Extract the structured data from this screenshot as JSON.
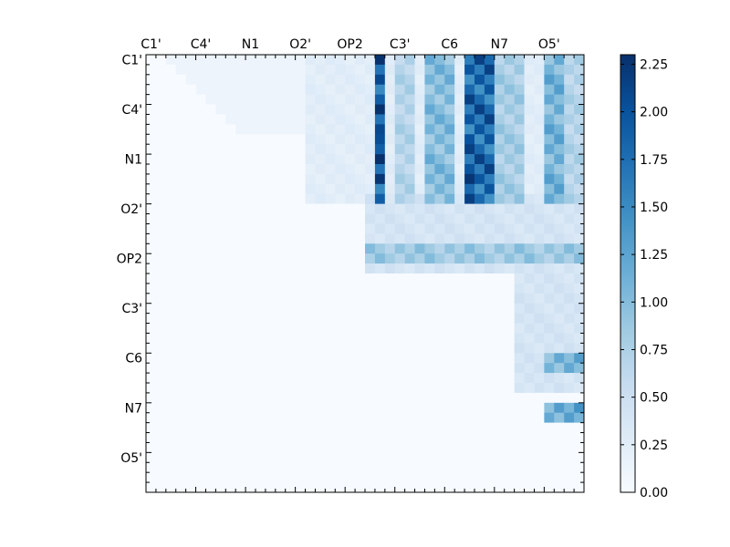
{
  "chart_data": {
    "type": "heatmap",
    "title": "",
    "xlabel": "",
    "ylabel": "",
    "colormap": "Blues",
    "colormap_stops": [
      "#f7fbff",
      "#deebf7",
      "#c6dbef",
      "#9ecae1",
      "#6baed6",
      "#4292c6",
      "#2171b5",
      "#08519c",
      "#08306b"
    ],
    "value_range": [
      0.0,
      2.3
    ],
    "grid_size": 44,
    "x_tick_labels": [
      "C1'",
      "C4'",
      "N1",
      "O2'",
      "OP2",
      "C3'",
      "C6",
      "N7",
      "O5'"
    ],
    "y_tick_labels": [
      "C1'",
      "C4'",
      "N1",
      "O2'",
      "OP2",
      "C3'",
      "C6",
      "N7",
      "O5'"
    ],
    "label_start_index": 0,
    "label_step": 5,
    "colorbar_ticks": [
      "0.00",
      "0.25",
      "0.50",
      "0.75",
      "1.00",
      "1.25",
      "1.50",
      "1.75",
      "2.00",
      "2.25"
    ],
    "colorbar_tick_values": [
      0.0,
      0.25,
      0.5,
      0.75,
      1.0,
      1.25,
      1.5,
      1.75,
      2.0,
      2.25
    ],
    "bands": [
      {
        "rows": [
          0,
          14
        ],
        "cols": [
          16,
          43
        ],
        "value": 0.25
      },
      {
        "rows": [
          0,
          14
        ],
        "cols": [
          23,
          23
        ],
        "value": 1.9
      },
      {
        "rows": [
          0,
          14
        ],
        "cols": [
          25,
          26
        ],
        "value": 0.7
      },
      {
        "rows": [
          0,
          14
        ],
        "cols": [
          28,
          30
        ],
        "value": 1.0
      },
      {
        "rows": [
          0,
          14
        ],
        "cols": [
          32,
          34
        ],
        "value": 1.8
      },
      {
        "rows": [
          0,
          14
        ],
        "cols": [
          35,
          37
        ],
        "value": 0.8
      },
      {
        "rows": [
          0,
          14
        ],
        "cols": [
          40,
          41
        ],
        "value": 1.1
      },
      {
        "rows": [
          0,
          14
        ],
        "cols": [
          42,
          43
        ],
        "value": 0.7
      },
      {
        "rows": [
          14,
          21
        ],
        "cols": [
          22,
          43
        ],
        "value": 0.4
      },
      {
        "rows": [
          19,
          20
        ],
        "cols": [
          22,
          43
        ],
        "value": 0.85
      },
      {
        "rows": [
          22,
          33
        ],
        "cols": [
          37,
          43
        ],
        "value": 0.4
      },
      {
        "rows": [
          30,
          31
        ],
        "cols": [
          40,
          43
        ],
        "value": 1.1
      },
      {
        "rows": [
          35,
          36
        ],
        "cols": [
          40,
          43
        ],
        "value": 1.2
      }
    ],
    "peaks": [
      {
        "row": 10,
        "col": 23,
        "value": 2.3
      },
      {
        "row": 12,
        "col": 23,
        "value": 2.25
      },
      {
        "row": 12,
        "col": 32,
        "value": 2.25
      },
      {
        "row": 8,
        "col": 32,
        "value": 2.0
      },
      {
        "row": 8,
        "col": 23,
        "value": 2.05
      }
    ]
  }
}
